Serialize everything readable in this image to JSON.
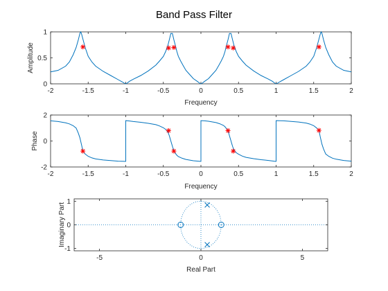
{
  "figure": {
    "title": "Band Pass Filter"
  },
  "colors": {
    "line": "#0072BD",
    "marker": "#FF0000",
    "axes": "#262626",
    "grid": "#0072BD"
  },
  "chart_data": [
    {
      "id": "amplitude",
      "type": "line",
      "xlabel": "Frequency",
      "ylabel": "Amplitude",
      "xlim": [
        -2,
        2
      ],
      "ylim": [
        0,
        1
      ],
      "xticks": [
        -2,
        -1.5,
        -1,
        -0.5,
        0,
        0.5,
        1,
        1.5,
        2
      ],
      "xtick_labels": [
        "-2",
        "-1.5",
        "-1",
        "-0.5",
        "0",
        "0.5",
        "1",
        "1.5",
        "2"
      ],
      "yticks": [
        0,
        0.5,
        1
      ],
      "ytick_labels": [
        "0",
        "0.5",
        "1"
      ],
      "series": [
        {
          "x": [
            -2,
            -1.9,
            -1.8,
            -1.75,
            -1.7,
            -1.66,
            -1.63,
            -1.61,
            -1.6,
            -1.59,
            -1.57,
            -1.54,
            -1.5,
            -1.45,
            -1.4,
            -1.3,
            -1.2,
            -1.1,
            -1.05,
            -1.01,
            -1,
            -0.99,
            -0.95,
            -0.9,
            -0.8,
            -0.7,
            -0.6,
            -0.55,
            -0.5,
            -0.47,
            -0.44,
            -0.42,
            -0.4,
            -0.38,
            -0.36,
            -0.34,
            -0.32,
            -0.3,
            -0.27,
            -0.24,
            -0.2,
            -0.15,
            -0.1,
            -0.05,
            -0.01,
            0,
            0.01,
            0.05,
            0.1,
            0.15,
            0.2,
            0.24,
            0.27,
            0.3,
            0.32,
            0.34,
            0.36,
            0.38,
            0.4,
            0.42,
            0.44,
            0.47,
            0.5,
            0.55,
            0.6,
            0.7,
            0.8,
            0.9,
            0.95,
            0.99,
            1,
            1.01,
            1.05,
            1.1,
            1.2,
            1.3,
            1.4,
            1.45,
            1.5,
            1.54,
            1.57,
            1.59,
            1.6,
            1.61,
            1.63,
            1.66,
            1.7,
            1.75,
            1.8,
            1.9,
            2
          ],
          "y": [
            0.23,
            0.26,
            0.34,
            0.42,
            0.56,
            0.7,
            0.85,
            0.97,
            1.0,
            0.97,
            0.86,
            0.7,
            0.53,
            0.42,
            0.34,
            0.24,
            0.16,
            0.08,
            0.04,
            0.005,
            0,
            0.005,
            0.05,
            0.09,
            0.16,
            0.25,
            0.36,
            0.44,
            0.53,
            0.62,
            0.74,
            0.85,
            0.97,
            0.97,
            0.85,
            0.74,
            0.62,
            0.53,
            0.44,
            0.36,
            0.26,
            0.18,
            0.1,
            0.05,
            0.005,
            0,
            0.005,
            0.05,
            0.1,
            0.18,
            0.26,
            0.36,
            0.44,
            0.53,
            0.62,
            0.74,
            0.85,
            0.97,
            0.97,
            0.85,
            0.74,
            0.62,
            0.53,
            0.44,
            0.36,
            0.25,
            0.16,
            0.09,
            0.05,
            0.005,
            0,
            0.005,
            0.04,
            0.08,
            0.16,
            0.24,
            0.34,
            0.42,
            0.53,
            0.7,
            0.86,
            0.97,
            1.0,
            0.97,
            0.85,
            0.7,
            0.56,
            0.42,
            0.34,
            0.26,
            0.23
          ]
        }
      ],
      "markers": {
        "x": [
          -1.57,
          -0.43,
          -0.36,
          0.36,
          0.43,
          1.57
        ],
        "y": [
          0.71,
          0.69,
          0.7,
          0.71,
          0.69,
          0.71
        ],
        "symbol": "*"
      }
    },
    {
      "id": "phase",
      "type": "line",
      "xlabel": "Frequency",
      "ylabel": "Phase",
      "xlim": [
        -2,
        2
      ],
      "ylim": [
        -2,
        2
      ],
      "xticks": [
        -2,
        -1.5,
        -1,
        -0.5,
        0,
        0.5,
        1,
        1.5,
        2
      ],
      "xtick_labels": [
        "-2",
        "-1.5",
        "-1",
        "-0.5",
        "0",
        "0.5",
        "1",
        "1.5",
        "2"
      ],
      "yticks": [
        -2,
        0,
        2
      ],
      "ytick_labels": [
        "-2",
        "0",
        "2"
      ],
      "series": [
        {
          "x": [
            -2,
            -1.9,
            -1.8,
            -1.75,
            -1.7,
            -1.66,
            -1.63,
            -1.61,
            -1.6,
            -1.59,
            -1.57,
            -1.54,
            -1.5,
            -1.45,
            -1.4,
            -1.3,
            -1.2,
            -1.1,
            -1.01,
            -1,
            -1,
            -0.95,
            -0.9,
            -0.8,
            -0.7,
            -0.6,
            -0.55,
            -0.5,
            -0.47,
            -0.44,
            -0.42,
            -0.41,
            -0.4,
            -0.39,
            -0.38,
            -0.36,
            -0.34,
            -0.32,
            -0.3,
            -0.25,
            -0.2,
            -0.1,
            -0.01,
            0,
            0,
            0.05,
            0.1,
            0.2,
            0.25,
            0.3,
            0.32,
            0.34,
            0.36,
            0.38,
            0.39,
            0.4,
            0.41,
            0.42,
            0.44,
            0.47,
            0.5,
            0.55,
            0.6,
            0.7,
            0.8,
            0.9,
            0.99,
            1,
            1,
            1.1,
            1.2,
            1.3,
            1.4,
            1.45,
            1.5,
            1.54,
            1.57,
            1.59,
            1.6,
            1.61,
            1.63,
            1.66,
            1.7,
            1.75,
            1.8,
            1.9,
            2
          ],
          "y": [
            1.55,
            1.5,
            1.4,
            1.32,
            1.18,
            1.0,
            0.6,
            0.25,
            0,
            -0.25,
            -0.78,
            -1.0,
            -1.18,
            -1.3,
            -1.38,
            -1.46,
            -1.51,
            -1.55,
            -1.57,
            -1.57,
            1.57,
            1.54,
            1.5,
            1.44,
            1.36,
            1.26,
            1.16,
            1.02,
            0.9,
            0.7,
            0.4,
            0.2,
            0,
            -0.2,
            -0.4,
            -0.75,
            -0.95,
            -1.1,
            -1.2,
            -1.33,
            -1.42,
            -1.52,
            -1.57,
            -1.57,
            1.57,
            1.55,
            1.52,
            1.42,
            1.33,
            1.2,
            1.1,
            0.95,
            0.8,
            0.4,
            0.2,
            0,
            -0.2,
            -0.4,
            -0.7,
            -0.9,
            -1.02,
            -1.16,
            -1.26,
            -1.36,
            -1.44,
            -1.5,
            -1.57,
            -1.57,
            1.57,
            1.55,
            1.51,
            1.46,
            1.38,
            1.3,
            1.18,
            1.0,
            0.82,
            0.25,
            0,
            -0.25,
            -0.6,
            -1.0,
            -1.18,
            -1.32,
            -1.4,
            -1.5,
            -1.55
          ]
        }
      ],
      "markers": {
        "x": [
          -1.57,
          -0.43,
          -0.36,
          0.36,
          0.43,
          1.57
        ],
        "y": [
          -0.78,
          0.8,
          -0.78,
          0.8,
          -0.78,
          0.82
        ],
        "symbol": "*"
      }
    },
    {
      "id": "pole-zero",
      "type": "scatter",
      "xlabel": "Real Part",
      "ylabel": "Imaginary Part",
      "xlim": [
        -6.25,
        6.25
      ],
      "ylim": [
        -1.1,
        1.1
      ],
      "xticks": [
        -5,
        0,
        5
      ],
      "xtick_labels": [
        "-5",
        "0",
        "5"
      ],
      "yticks": [
        -1,
        0,
        1
      ],
      "ytick_labels": [
        "-1",
        "0",
        "1"
      ],
      "zeros": [
        {
          "x": -1,
          "y": 0
        },
        {
          "x": 1,
          "y": 0
        }
      ],
      "poles": [
        {
          "x": 0.31,
          "y": 0.84
        },
        {
          "x": 0.31,
          "y": -0.84
        }
      ],
      "unit_circle": true
    }
  ]
}
